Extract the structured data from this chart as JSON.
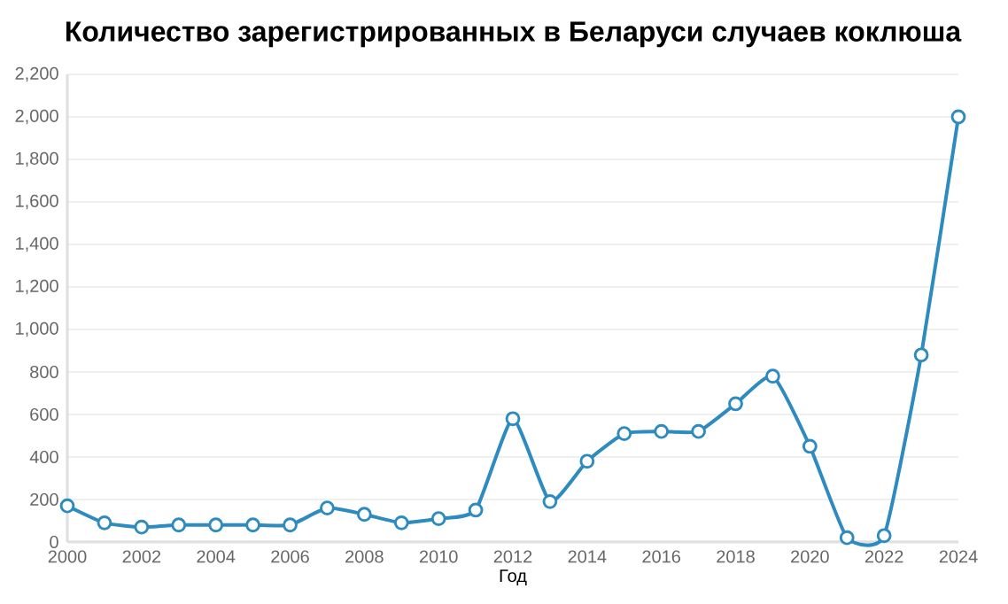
{
  "chart_data": {
    "type": "line",
    "title": "Количество зарегистрированных в Беларуси случаев коклюша",
    "xlabel": "Год",
    "x": [
      2000,
      2001,
      2002,
      2003,
      2004,
      2005,
      2006,
      2007,
      2008,
      2009,
      2010,
      2011,
      2012,
      2013,
      2014,
      2015,
      2016,
      2017,
      2018,
      2019,
      2020,
      2021,
      2022,
      2023,
      2024
    ],
    "values": [
      170,
      90,
      70,
      80,
      80,
      80,
      80,
      160,
      130,
      90,
      110,
      150,
      580,
      190,
      380,
      510,
      520,
      520,
      650,
      780,
      450,
      20,
      30,
      880,
      2000
    ],
    "color": "#2e8bc0",
    "marker": "circle",
    "line_style": "solid",
    "grid": "y",
    "xlim": [
      2000,
      2024
    ],
    "xticks": [
      2000,
      2002,
      2004,
      2006,
      2008,
      2010,
      2012,
      2014,
      2016,
      2018,
      2020,
      2022,
      2024
    ],
    "ylim": [
      0,
      2200
    ],
    "yticks": [
      0,
      200,
      400,
      600,
      800,
      {
        "value": 1000,
        "label": "1,000"
      },
      {
        "value": 1200,
        "label": "1,200"
      },
      {
        "value": 1400,
        "label": "1,400"
      },
      {
        "value": 1600,
        "label": "1,600"
      },
      {
        "value": 1800,
        "label": "1,800"
      },
      {
        "value": 2000,
        "label": "2,000"
      },
      {
        "value": 2200,
        "label": "2,200"
      }
    ]
  }
}
